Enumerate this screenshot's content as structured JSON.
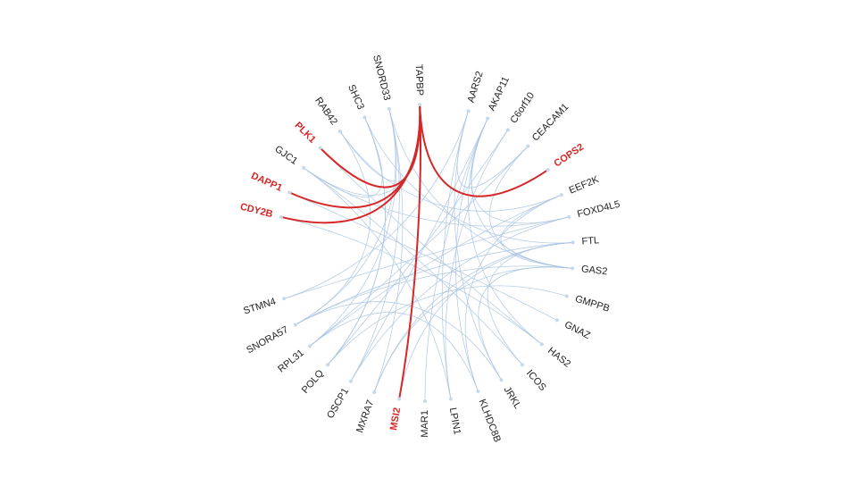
{
  "chart_data": {
    "type": "hierarchical-edge-bundling",
    "nodes": [
      {
        "id": "TAPBP",
        "angle": 358
      },
      {
        "id": "AARS2",
        "angle": 17
      },
      {
        "id": "AKAP11",
        "angle": 25
      },
      {
        "id": "C6orf10",
        "angle": 34
      },
      {
        "id": "CEACAM1",
        "angle": 44
      },
      {
        "id": "COPS2",
        "angle": 56,
        "highlight": true
      },
      {
        "id": "EEF2K",
        "angle": 67
      },
      {
        "id": "FOXD4L5",
        "angle": 76
      },
      {
        "id": "FTL",
        "angle": 86
      },
      {
        "id": "GAS2",
        "angle": 96
      },
      {
        "id": "GMPPB",
        "angle": 107
      },
      {
        "id": "GNAZ",
        "angle": 117
      },
      {
        "id": "HAS2",
        "angle": 128
      },
      {
        "id": "ICOS",
        "angle": 139
      },
      {
        "id": "JRKL",
        "angle": 149
      },
      {
        "id": "KLHDC8B",
        "angle": 159
      },
      {
        "id": "LPIN1",
        "angle": 170
      },
      {
        "id": "MAR1",
        "angle": 180
      },
      {
        "id": "MSI2",
        "angle": 190,
        "highlight": true
      },
      {
        "id": "MXRA7",
        "angle": 200
      },
      {
        "id": "OSCP1",
        "angle": 210
      },
      {
        "id": "POLQ",
        "angle": 221
      },
      {
        "id": "RPL31",
        "angle": 231
      },
      {
        "id": "SNORA57",
        "angle": 241
      },
      {
        "id": "STMN4",
        "angle": 252
      },
      {
        "id": "CDY2B",
        "angle": 284,
        "highlight": true
      },
      {
        "id": "DAPP1",
        "angle": 294,
        "highlight": true
      },
      {
        "id": "GJC1",
        "angle": 305
      },
      {
        "id": "PLK1",
        "angle": 315,
        "highlight": true
      },
      {
        "id": "RAB42",
        "angle": 325
      },
      {
        "id": "SHC3",
        "angle": 336
      },
      {
        "id": "SNORD33",
        "angle": 346
      }
    ],
    "links": [
      [
        "TAPBP",
        "MSI2",
        true
      ],
      [
        "TAPBP",
        "COPS2",
        true
      ],
      [
        "TAPBP",
        "PLK1",
        true
      ],
      [
        "TAPBP",
        "DAPP1",
        true
      ],
      [
        "TAPBP",
        "CDY2B",
        true
      ],
      [
        "TAPBP",
        "GJC1",
        false
      ],
      [
        "TAPBP",
        "RAB42",
        false
      ],
      [
        "SNORD33",
        "SNORA57",
        false
      ],
      [
        "SNORD33",
        "RPL31",
        false
      ],
      [
        "SNORD33",
        "GAS2",
        false
      ],
      [
        "SNORD33",
        "OSCP1",
        false
      ],
      [
        "SHC3",
        "POLQ",
        false
      ],
      [
        "SHC3",
        "FTL",
        false
      ],
      [
        "SHC3",
        "GJC1",
        false
      ],
      [
        "RAB42",
        "EEF2K",
        false
      ],
      [
        "RAB42",
        "SNORA57",
        false
      ],
      [
        "PLK1",
        "HAS2",
        false
      ],
      [
        "GJC1",
        "LPIN1",
        false
      ],
      [
        "GJC1",
        "ICOS",
        false
      ],
      [
        "DAPP1",
        "GNAZ",
        false
      ],
      [
        "CDY2B",
        "HAS2",
        false
      ],
      [
        "STMN4",
        "FOXD4L5",
        false
      ],
      [
        "SNORA57",
        "FTL",
        false
      ],
      [
        "SNORA57",
        "GAS2",
        false
      ],
      [
        "RPL31",
        "EEF2K",
        false
      ],
      [
        "RPL31",
        "CEACAM1",
        false
      ],
      [
        "POLQ",
        "GMPPB",
        false
      ],
      [
        "POLQ",
        "C6orf10",
        false
      ],
      [
        "OSCP1",
        "AKAP11",
        false
      ],
      [
        "OSCP1",
        "FOXD4L5",
        false
      ],
      [
        "MXRA7",
        "GAS2",
        false
      ],
      [
        "MXRA7",
        "FTL",
        false
      ],
      [
        "MAR1",
        "AKAP11",
        false
      ],
      [
        "LPIN1",
        "C6orf10",
        false
      ],
      [
        "KLHDC8B",
        "AKAP11",
        false
      ],
      [
        "KLHDC8B",
        "EEF2K",
        false
      ],
      [
        "JRKL",
        "GAS2",
        false
      ],
      [
        "JRKL",
        "AARS2",
        false
      ],
      [
        "ICOS",
        "FTL",
        false
      ],
      [
        "HAS2",
        "AKAP11",
        false
      ],
      [
        "AARS2",
        "CEACAM1",
        false
      ],
      [
        "AKAP11",
        "GAS2",
        false
      ],
      [
        "AKAP11",
        "FOXD4L5",
        false
      ],
      [
        "CEACAM1",
        "GAS2",
        false
      ],
      [
        "EEF2K",
        "GAS2",
        false
      ],
      [
        "FTL",
        "MSI2",
        false
      ],
      [
        "MXRA7",
        "SNORD33",
        false
      ],
      [
        "LPIN1",
        "AARS2",
        false
      ],
      [
        "SNORA57",
        "JRKL",
        false
      ],
      [
        "RPL31",
        "KLHDC8B",
        false
      ],
      [
        "POLQ",
        "SHC3",
        false
      ],
      [
        "GJC1",
        "FOXD4L5",
        false
      ],
      [
        "STMN4",
        "AARS2",
        false
      ]
    ]
  }
}
